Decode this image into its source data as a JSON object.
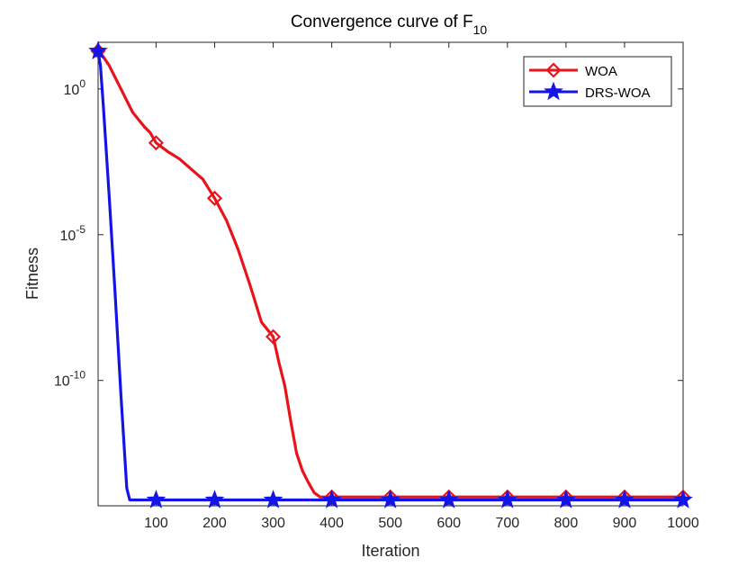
{
  "chart_data": {
    "type": "line",
    "title": "Convergence curve of F",
    "title_subscript": "10",
    "xlabel": "Iteration",
    "ylabel": "Fitness",
    "xlim": [
      1,
      1000
    ],
    "ylim_log10": [
      -14.3,
      1.6
    ],
    "y_scale": "log",
    "x_ticks": [
      100,
      200,
      300,
      400,
      500,
      600,
      700,
      800,
      900,
      1000
    ],
    "x_tick_labels": [
      "100",
      "200",
      "300",
      "400",
      "500",
      "600",
      "700",
      "800",
      "900",
      "1000"
    ],
    "y_ticks": [
      {
        "base": "10",
        "exp": "0",
        "log10": 0
      },
      {
        "base": "10",
        "exp": "-5",
        "log10": -5
      },
      {
        "base": "10",
        "exp": "-10",
        "log10": -10
      }
    ],
    "legend_position": "top-right",
    "series": [
      {
        "name": "WOA",
        "color": "#e8141b",
        "marker": "diamond",
        "points_log10": [
          [
            1,
            1.3
          ],
          [
            10,
            1.1
          ],
          [
            20,
            0.8
          ],
          [
            30,
            0.4
          ],
          [
            40,
            0.0
          ],
          [
            50,
            -0.4
          ],
          [
            60,
            -0.8
          ],
          [
            70,
            -1.05
          ],
          [
            80,
            -1.3
          ],
          [
            90,
            -1.5
          ],
          [
            100,
            -1.85
          ],
          [
            120,
            -2.15
          ],
          [
            140,
            -2.4
          ],
          [
            160,
            -2.75
          ],
          [
            180,
            -3.1
          ],
          [
            200,
            -3.75
          ],
          [
            220,
            -4.5
          ],
          [
            240,
            -5.5
          ],
          [
            260,
            -6.7
          ],
          [
            280,
            -8.0
          ],
          [
            300,
            -8.5
          ],
          [
            310,
            -9.4
          ],
          [
            320,
            -10.2
          ],
          [
            330,
            -11.4
          ],
          [
            340,
            -12.5
          ],
          [
            350,
            -13.1
          ],
          [
            360,
            -13.5
          ],
          [
            370,
            -13.85
          ],
          [
            380,
            -14.0
          ],
          [
            400,
            -14.0
          ],
          [
            1000,
            -14.0
          ]
        ],
        "marker_x": [
          1,
          100,
          200,
          300,
          400,
          500,
          600,
          700,
          800,
          900,
          1000
        ]
      },
      {
        "name": "DRS-WOA",
        "color": "#1414e6",
        "marker": "star",
        "points_log10": [
          [
            1,
            1.3
          ],
          [
            5,
            0.8
          ],
          [
            10,
            -0.6
          ],
          [
            20,
            -3.7
          ],
          [
            30,
            -7.0
          ],
          [
            40,
            -10.5
          ],
          [
            50,
            -13.7
          ],
          [
            55,
            -14.1
          ],
          [
            1000,
            -14.1
          ]
        ],
        "marker_x": [
          1,
          100,
          200,
          300,
          400,
          500,
          600,
          700,
          800,
          900,
          1000
        ]
      }
    ]
  }
}
